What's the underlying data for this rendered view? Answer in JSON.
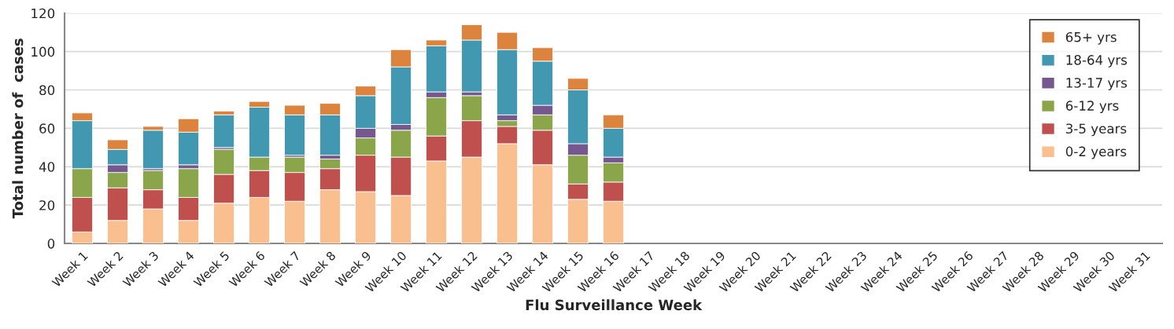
{
  "chart_data": {
    "type": "bar",
    "stacked": true,
    "xlabel": "Flu Surveillance Week",
    "ylabel": "Total number of  cases",
    "categories": [
      "Week 1",
      "Week 2",
      "Week 3",
      "Week 4",
      "Week 5",
      "Week 6",
      "Week 7",
      "Week 8",
      "Week 9",
      "Week 10",
      "Week 11",
      "Week 12",
      "Week 13",
      "Week 14",
      "Week 15",
      "Week 16",
      "Week 17",
      "Week 18",
      "Week 19",
      "Week 20",
      "Week 21",
      "Week 22",
      "Week 23",
      "Week 24",
      "Week 25",
      "Week 26",
      "Week 27",
      "Week 28",
      "Week 29",
      "Week 30",
      "Week 31"
    ],
    "series": [
      {
        "name": "0-2 years",
        "color": "#f9bf8f",
        "values": [
          6,
          12,
          18,
          12,
          21,
          24,
          22,
          28,
          27,
          25,
          43,
          45,
          52,
          41,
          23,
          22,
          null,
          null,
          null,
          null,
          null,
          null,
          null,
          null,
          null,
          null,
          null,
          null,
          null,
          null,
          null
        ]
      },
      {
        "name": "3-5 years",
        "color": "#c0504d",
        "values": [
          18,
          17,
          10,
          12,
          15,
          14,
          15,
          11,
          19,
          20,
          13,
          19,
          9,
          18,
          8,
          10,
          null,
          null,
          null,
          null,
          null,
          null,
          null,
          null,
          null,
          null,
          null,
          null,
          null,
          null,
          null
        ]
      },
      {
        "name": "6-12 yrs",
        "color": "#8ba54b",
        "values": [
          15,
          8,
          10,
          15,
          13,
          7,
          8,
          5,
          9,
          14,
          20,
          13,
          3,
          8,
          15,
          10,
          null,
          null,
          null,
          null,
          null,
          null,
          null,
          null,
          null,
          null,
          null,
          null,
          null,
          null,
          null
        ]
      },
      {
        "name": "13-17 yrs",
        "color": "#75598e",
        "values": [
          0,
          4,
          1,
          2,
          1,
          0,
          1,
          2,
          5,
          3,
          3,
          2,
          3,
          5,
          6,
          3,
          null,
          null,
          null,
          null,
          null,
          null,
          null,
          null,
          null,
          null,
          null,
          null,
          null,
          null,
          null
        ]
      },
      {
        "name": "18-64 yrs",
        "color": "#4298b0",
        "values": [
          25,
          8,
          20,
          17,
          17,
          26,
          21,
          21,
          17,
          30,
          24,
          27,
          34,
          23,
          28,
          15,
          null,
          null,
          null,
          null,
          null,
          null,
          null,
          null,
          null,
          null,
          null,
          null,
          null,
          null,
          null
        ]
      },
      {
        "name": "65+ yrs",
        "color": "#dc833d",
        "values": [
          4,
          5,
          2,
          7,
          2,
          3,
          5,
          6,
          5,
          9,
          3,
          8,
          9,
          7,
          6,
          7,
          null,
          null,
          null,
          null,
          null,
          null,
          null,
          null,
          null,
          null,
          null,
          null,
          null,
          null,
          null
        ]
      }
    ],
    "ylim": [
      0,
      120
    ],
    "yticks": [
      0,
      20,
      40,
      60,
      80,
      100,
      120
    ],
    "grid": "y",
    "legend": "top right"
  }
}
